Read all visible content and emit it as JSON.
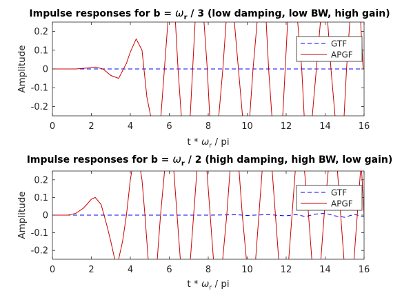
{
  "chart_data": [
    {
      "type": "line",
      "title": "Impulse responses for b = ωr / 3 (low damping, low BW, high gain)",
      "title_parts": [
        "Impulse responses for b = ",
        "ω",
        "r",
        " / 3 (low damping, low BW, high gain)"
      ],
      "xlabel": "t * ωr / pi",
      "xlabel_parts": [
        "t * ",
        "ω",
        "r",
        " / pi"
      ],
      "ylabel": "Amplitude",
      "xlim": [
        0,
        16
      ],
      "ylim": [
        -0.25,
        0.25
      ],
      "xticks": [
        0,
        2,
        4,
        6,
        8,
        10,
        12,
        14,
        16
      ],
      "yticks": [
        -0.2,
        -0.1,
        0,
        0.1,
        0.2
      ],
      "ytick_labels": [
        "-0.2",
        "-0.1",
        "0",
        "0.1",
        "0.2"
      ],
      "legend_position": "top-right",
      "series": [
        {
          "name": "GTF",
          "color": "#0000ff",
          "dash": "dashed",
          "x": [
            0,
            2,
            4,
            6,
            8,
            10,
            12,
            14,
            16
          ],
          "y": [
            0,
            0,
            0,
            0,
            0,
            0,
            0,
            0,
            0
          ]
        },
        {
          "name": "APGF",
          "color": "#cc0000",
          "dash": "solid",
          "x": [
            0,
            1.2,
            1.8,
            2.2,
            2.6,
            3.0,
            3.4,
            3.8,
            4.0,
            4.3,
            4.6,
            4.85,
            5.1,
            5.4,
            5.55,
            5.75,
            5.95,
            6.15,
            6.3,
            6.45,
            6.65,
            6.85,
            7.05,
            7.2,
            7.35,
            7.55,
            7.75,
            7.95,
            8.1,
            8.3,
            8.5,
            8.75,
            8.95,
            9.1,
            9.3,
            9.55,
            9.8,
            9.95,
            10.1,
            10.3,
            10.55,
            10.8,
            10.95,
            11.1,
            11.3,
            11.55,
            11.8,
            11.95,
            12.1,
            12.3,
            12.55,
            12.8,
            12.95,
            13.1,
            13.3,
            13.55,
            13.8,
            13.95,
            14.1,
            14.3,
            14.55,
            14.8,
            14.95,
            15.1,
            15.3,
            15.55,
            15.8,
            15.95,
            16.0
          ],
          "y": [
            0,
            0.0,
            0.005,
            0.01,
            0.0,
            -0.035,
            -0.05,
            0.03,
            0.09,
            0.16,
            0.1,
            -0.15,
            -0.28,
            -0.45,
            -0.28,
            0.0,
            0.28,
            0.45,
            0.28,
            0.0,
            -0.3,
            -0.5,
            -0.3,
            0.0,
            0.3,
            0.5,
            0.3,
            0.0,
            -0.3,
            -0.5,
            -0.3,
            0.0,
            0.3,
            0.5,
            0.3,
            0.0,
            -0.3,
            -0.5,
            -0.3,
            0.0,
            0.3,
            0.5,
            0.3,
            0.0,
            -0.3,
            -0.5,
            -0.3,
            0.0,
            0.3,
            0.5,
            0.3,
            0.0,
            -0.3,
            -0.5,
            -0.3,
            0.0,
            0.3,
            0.5,
            0.3,
            0.0,
            -0.3,
            -0.5,
            -0.3,
            0.0,
            0.3,
            0.5,
            0.3,
            0.0,
            0.0
          ]
        }
      ]
    },
    {
      "type": "line",
      "title": "Impulse responses for b = ωr / 2 (high damping, high BW, low gain)",
      "title_parts": [
        "Impulse responses for b = ",
        "ω",
        "r",
        " / 2 (high damping, high BW, low gain)"
      ],
      "xlabel": "t * ωr / pi",
      "xlabel_parts": [
        "t * ",
        "ω",
        "r",
        " / pi"
      ],
      "ylabel": "Amplitude",
      "xlim": [
        0,
        16
      ],
      "ylim": [
        -0.25,
        0.25
      ],
      "xticks": [
        0,
        2,
        4,
        6,
        8,
        10,
        12,
        14,
        16
      ],
      "yticks": [
        -0.2,
        -0.1,
        0,
        0.1,
        0.2
      ],
      "ytick_labels": [
        "-0.2",
        "-0.1",
        "0",
        "0.1",
        "0.2"
      ],
      "legend_position": "top-right",
      "series": [
        {
          "name": "GTF",
          "color": "#0000ff",
          "dash": "dashed",
          "x": [
            0,
            6,
            8,
            9.5,
            10,
            11,
            12,
            12.5,
            13,
            13.5,
            14,
            14.5,
            15,
            15.5,
            16
          ],
          "y": [
            0,
            0,
            0,
            0.002,
            -0.002,
            0.003,
            -0.004,
            0.003,
            -0.008,
            0.006,
            0.01,
            -0.004,
            -0.012,
            0.004,
            -0.01
          ]
        },
        {
          "name": "APGF",
          "color": "#cc0000",
          "dash": "solid",
          "x": [
            0,
            0.8,
            1.2,
            1.6,
            2.0,
            2.2,
            2.5,
            2.8,
            3.0,
            3.3,
            3.6,
            3.8,
            4.0,
            4.3,
            4.6,
            4.75,
            4.95,
            5.15,
            5.35,
            5.55,
            5.8,
            6.0,
            6.2,
            6.4,
            6.6,
            6.85,
            7.05,
            7.25,
            7.45,
            7.65,
            7.9,
            8.1,
            8.3,
            8.5,
            8.7,
            8.95,
            9.15,
            9.35,
            9.55,
            9.75,
            10.0,
            10.2,
            10.4,
            10.6,
            10.8,
            11.05,
            11.25,
            11.45,
            11.65,
            11.85,
            12.1,
            12.3,
            12.5,
            12.7,
            12.9,
            13.15,
            13.35,
            13.55,
            13.75,
            13.95,
            14.2,
            14.4,
            14.6,
            14.8,
            15.0,
            15.25,
            15.45,
            15.65,
            15.85,
            16.0
          ],
          "y": [
            0,
            0,
            0.01,
            0.04,
            0.09,
            0.1,
            0.06,
            -0.06,
            -0.15,
            -0.3,
            -0.15,
            0.0,
            0.2,
            0.4,
            0.2,
            0.0,
            -0.3,
            -0.5,
            -0.3,
            0.0,
            0.3,
            0.5,
            0.3,
            0.0,
            -0.3,
            -0.5,
            -0.3,
            0.0,
            0.3,
            0.5,
            0.3,
            0.0,
            -0.3,
            -0.5,
            -0.3,
            0.0,
            0.3,
            0.5,
            0.3,
            0.0,
            -0.3,
            -0.5,
            -0.3,
            0.0,
            0.3,
            0.5,
            0.3,
            0.0,
            -0.3,
            -0.5,
            -0.3,
            0.0,
            0.3,
            0.5,
            0.3,
            0.0,
            -0.3,
            -0.5,
            -0.3,
            0.0,
            0.3,
            0.5,
            0.3,
            0.0,
            -0.3,
            -0.5,
            -0.3,
            0.0,
            0.3,
            0.0
          ]
        }
      ]
    }
  ]
}
